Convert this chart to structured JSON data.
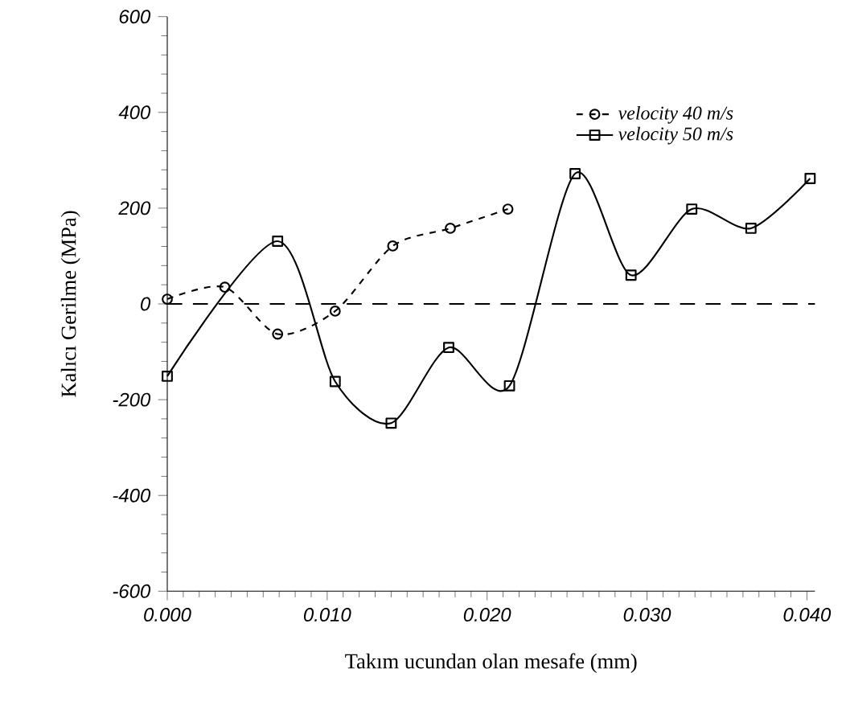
{
  "chart_data": {
    "type": "line",
    "xlabel": "Takım ucundan olan mesafe (mm)",
    "ylabel": "Kalıcı Gerilme (MPa)",
    "xlim": [
      0,
      0.0405
    ],
    "ylim": [
      -600,
      600
    ],
    "xticks": [
      {
        "value": 0,
        "label": "0.000"
      },
      {
        "value": 0.01,
        "label": "0.010"
      },
      {
        "value": 0.02,
        "label": "0.020"
      },
      {
        "value": 0.03,
        "label": "0.030"
      },
      {
        "value": 0.04,
        "label": "0.040"
      }
    ],
    "yticks": [
      -600,
      -400,
      -200,
      0,
      200,
      400,
      600
    ],
    "legend": "top right",
    "grid": false,
    "ref_lines": [
      {
        "axis": "y",
        "value": 0,
        "line_style": "dashed"
      }
    ],
    "series": [
      {
        "name": "velocity 40 m/s",
        "color": "#000000",
        "marker": "circle",
        "line_style": "dashed",
        "x": [
          0,
          0.0036,
          0.0069,
          0.0105,
          0.0141,
          0.0177,
          0.0213
        ],
        "values": [
          10,
          35,
          -63,
          -15,
          121,
          158,
          198
        ]
      },
      {
        "name": "velocity 50 m/s",
        "color": "#000000",
        "marker": "square",
        "line_style": "solid",
        "x": [
          0,
          0.0069,
          0.0105,
          0.014,
          0.0176,
          0.0214,
          0.0255,
          0.029,
          0.0328,
          0.0365,
          0.0402
        ],
        "values": [
          -151,
          131,
          -162,
          -249,
          -91,
          -171,
          272,
          60,
          198,
          158,
          262
        ]
      }
    ]
  }
}
